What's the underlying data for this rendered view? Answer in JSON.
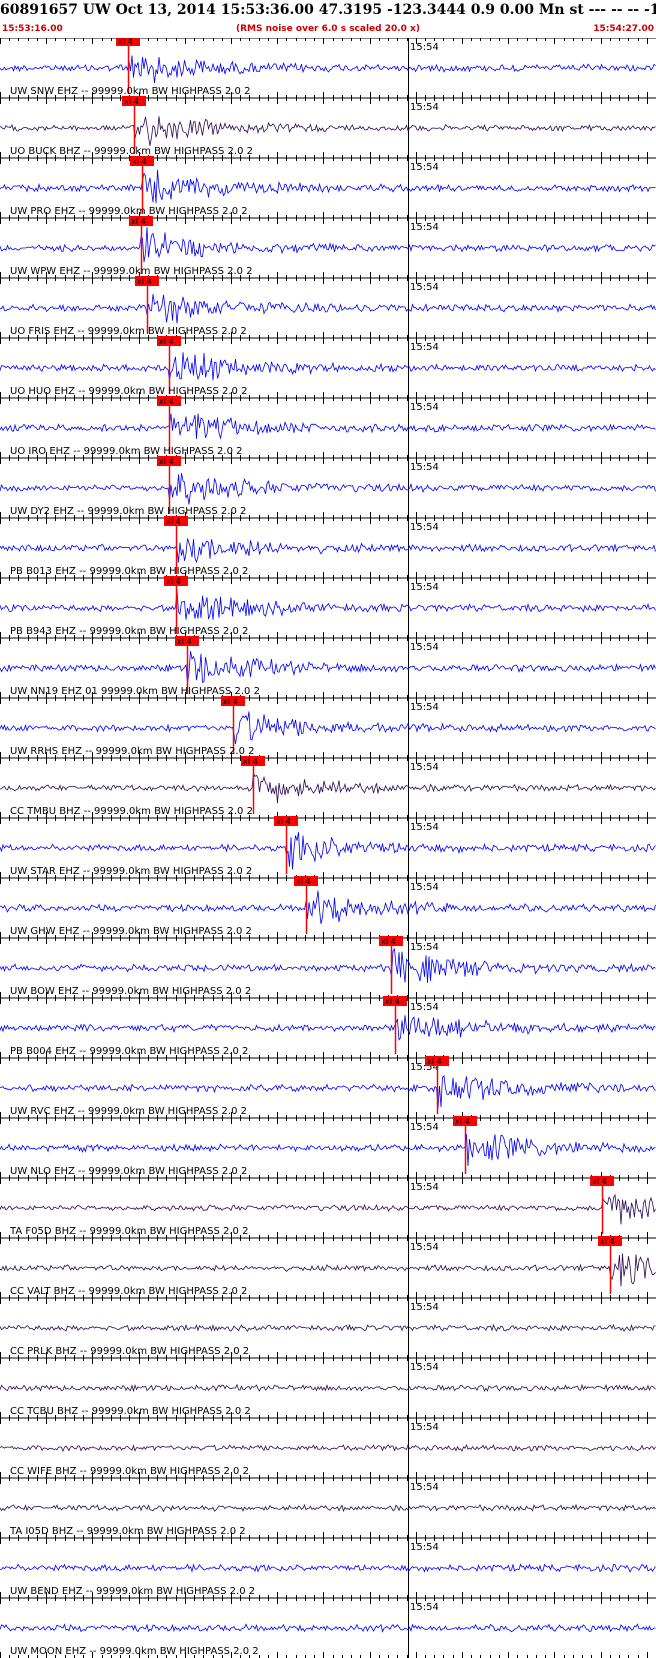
{
  "header": {
    "title": "60891657 UW Oct 13, 2014 15:53:36.00   47.3195 -123.3444  0.9 0.00 Mn st --- -- --  -1",
    "start_time": "15:53:16.00",
    "scale_note": "(RMS noise over 6.0 s scaled 20.0 x)",
    "end_time": "15:54:27.00"
  },
  "chart_data": {
    "type": "line",
    "title": "60891657 UW Oct 13, 2014 15:53:36.00   47.3195 -123.3444  0.9 0.00 Mn st --- -- --  -1",
    "x_unit": "time",
    "x_start": "15:53:16.00",
    "x_end": "15:54:27.00",
    "minute_marker": "15:54",
    "pick_label": "xI 4",
    "colors": {
      "blue": "#0000ff",
      "dark": "#2a0a55",
      "pick": "#ff0000",
      "grid": "#000000"
    },
    "traces": [
      {
        "label": "UW SNW EHZ -- 99999.0km BW  HIGHPASS  2.0  2",
        "color": "blue",
        "pick": 0.1944
      },
      {
        "label": "UO BUCK BHZ -- 99999.0km BW  HIGHPASS  2.0  2",
        "color": "dark",
        "pick": 0.2037
      },
      {
        "label": "UW PRO EHZ -- 99999.0km BW  HIGHPASS  2.0  2",
        "color": "blue",
        "pick": 0.216
      },
      {
        "label": "UW WPW EHZ -- 99999.0km BW  HIGHPASS  2.0  2",
        "color": "blue",
        "pick": 0.2145
      },
      {
        "label": "UO FRIS EHZ -- 99999.0km BW  HIGHPASS  2.0  2",
        "color": "blue",
        "pick": 0.2238
      },
      {
        "label": "UO HUO EHZ -- 99999.0km BW  HIGHPASS  2.0  2",
        "color": "blue",
        "pick": 0.2577
      },
      {
        "label": "UO IRO EHZ -- 99999.0km BW  HIGHPASS  2.0  2",
        "color": "blue",
        "pick": 0.2577
      },
      {
        "label": "UW DY2 EHZ -- 99999.0km BW  HIGHPASS  2.0  2",
        "color": "blue",
        "pick": 0.2577
      },
      {
        "label": "PB B013 EHZ -- 99999.0km BW  HIGHPASS  2.0  2",
        "color": "blue",
        "pick": 0.2685
      },
      {
        "label": "PB B943 EHZ -- 99999.0km BW  HIGHPASS  2.0  2",
        "color": "blue",
        "pick": 0.2685
      },
      {
        "label": "UW NN19 EHZ 01 99999.0km BW  HIGHPASS  2.0  2",
        "color": "blue",
        "pick": 0.2855
      },
      {
        "label": "UW RRHS EHZ -- 99999.0km BW  HIGHPASS  2.0  2",
        "color": "blue",
        "pick": 0.3549
      },
      {
        "label": "CC TMBU BHZ -- 99999.0km BW  HIGHPASS  2.0  2",
        "color": "dark",
        "pick": 0.3858
      },
      {
        "label": "UW STAR EHZ -- 99999.0km BW  HIGHPASS  2.0  2",
        "color": "blue",
        "pick": 0.4367
      },
      {
        "label": "UW GHW EHZ -- 99999.0km BW  HIGHPASS  2.0  2",
        "color": "blue",
        "pick": 0.466
      },
      {
        "label": "UW BOW EHZ -- 99999.0km BW  HIGHPASS  2.0  2",
        "color": "blue",
        "pick": 0.5957
      },
      {
        "label": "PB B004 EHZ -- 99999.0km BW  HIGHPASS  2.0  2",
        "color": "blue",
        "pick": 0.6019
      },
      {
        "label": "UW RVC EHZ -- 99999.0km BW  HIGHPASS  2.0  2",
        "color": "blue",
        "pick": 0.6667
      },
      {
        "label": "UW NLO EHZ -- 99999.0km BW  HIGHPASS  2.0  2",
        "color": "blue",
        "pick": 0.7083
      },
      {
        "label": "TA F05D BHZ -- 99999.0km BW  HIGHPASS  2.0  2",
        "color": "dark",
        "pick": 0.9182
      },
      {
        "label": "CC VALT BHZ -- 99999.0km BW  HIGHPASS  2.0  2",
        "color": "dark",
        "pick": 0.9306
      },
      {
        "label": "CC PRLK BHZ -- 99999.0km BW  HIGHPASS  2.0  2",
        "color": "dark",
        "pick": null
      },
      {
        "label": "CC TCBU BHZ -- 99999.0km BW  HIGHPASS  2.0  2",
        "color": "dark",
        "pick": null
      },
      {
        "label": "CC WIFE BHZ -- 99999.0km BW  HIGHPASS  2.0  2",
        "color": "dark",
        "pick": null
      },
      {
        "label": "TA I05D BHZ -- 99999.0km BW  HIGHPASS  2.0  2",
        "color": "dark",
        "pick": null
      },
      {
        "label": "UW BEND EHZ -- 99999.0km BW  HIGHPASS  2.0  2",
        "color": "blue",
        "pick": null
      },
      {
        "label": "UW MOON EHZ -- 99999.0km BW  HIGHPASS  2.0  2",
        "color": "blue",
        "pick": null
      }
    ]
  }
}
